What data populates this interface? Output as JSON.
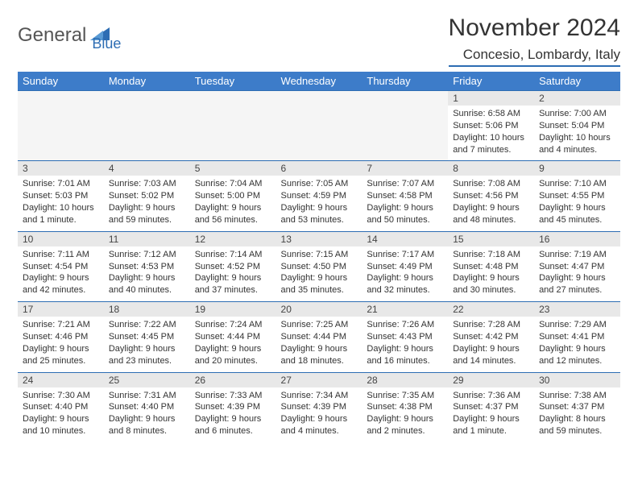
{
  "logo": {
    "part1": "General",
    "part2": "Blue"
  },
  "title": "November 2024",
  "location": "Concesio, Lombardy, Italy",
  "colors": {
    "accent": "#2d6db3",
    "header_bg": "#3d7cc9",
    "daynum_bg": "#e8e8e8",
    "border": "#2d6db3",
    "text": "#333333"
  },
  "weekdays": [
    "Sunday",
    "Monday",
    "Tuesday",
    "Wednesday",
    "Thursday",
    "Friday",
    "Saturday"
  ],
  "weeks": [
    [
      null,
      null,
      null,
      null,
      null,
      {
        "day": "1",
        "sunrise": "6:58 AM",
        "sunset": "5:06 PM",
        "daylight": "10 hours and 7 minutes."
      },
      {
        "day": "2",
        "sunrise": "7:00 AM",
        "sunset": "5:04 PM",
        "daylight": "10 hours and 4 minutes."
      }
    ],
    [
      {
        "day": "3",
        "sunrise": "7:01 AM",
        "sunset": "5:03 PM",
        "daylight": "10 hours and 1 minute."
      },
      {
        "day": "4",
        "sunrise": "7:03 AM",
        "sunset": "5:02 PM",
        "daylight": "9 hours and 59 minutes."
      },
      {
        "day": "5",
        "sunrise": "7:04 AM",
        "sunset": "5:00 PM",
        "daylight": "9 hours and 56 minutes."
      },
      {
        "day": "6",
        "sunrise": "7:05 AM",
        "sunset": "4:59 PM",
        "daylight": "9 hours and 53 minutes."
      },
      {
        "day": "7",
        "sunrise": "7:07 AM",
        "sunset": "4:58 PM",
        "daylight": "9 hours and 50 minutes."
      },
      {
        "day": "8",
        "sunrise": "7:08 AM",
        "sunset": "4:56 PM",
        "daylight": "9 hours and 48 minutes."
      },
      {
        "day": "9",
        "sunrise": "7:10 AM",
        "sunset": "4:55 PM",
        "daylight": "9 hours and 45 minutes."
      }
    ],
    [
      {
        "day": "10",
        "sunrise": "7:11 AM",
        "sunset": "4:54 PM",
        "daylight": "9 hours and 42 minutes."
      },
      {
        "day": "11",
        "sunrise": "7:12 AM",
        "sunset": "4:53 PM",
        "daylight": "9 hours and 40 minutes."
      },
      {
        "day": "12",
        "sunrise": "7:14 AM",
        "sunset": "4:52 PM",
        "daylight": "9 hours and 37 minutes."
      },
      {
        "day": "13",
        "sunrise": "7:15 AM",
        "sunset": "4:50 PM",
        "daylight": "9 hours and 35 minutes."
      },
      {
        "day": "14",
        "sunrise": "7:17 AM",
        "sunset": "4:49 PM",
        "daylight": "9 hours and 32 minutes."
      },
      {
        "day": "15",
        "sunrise": "7:18 AM",
        "sunset": "4:48 PM",
        "daylight": "9 hours and 30 minutes."
      },
      {
        "day": "16",
        "sunrise": "7:19 AM",
        "sunset": "4:47 PM",
        "daylight": "9 hours and 27 minutes."
      }
    ],
    [
      {
        "day": "17",
        "sunrise": "7:21 AM",
        "sunset": "4:46 PM",
        "daylight": "9 hours and 25 minutes."
      },
      {
        "day": "18",
        "sunrise": "7:22 AM",
        "sunset": "4:45 PM",
        "daylight": "9 hours and 23 minutes."
      },
      {
        "day": "19",
        "sunrise": "7:24 AM",
        "sunset": "4:44 PM",
        "daylight": "9 hours and 20 minutes."
      },
      {
        "day": "20",
        "sunrise": "7:25 AM",
        "sunset": "4:44 PM",
        "daylight": "9 hours and 18 minutes."
      },
      {
        "day": "21",
        "sunrise": "7:26 AM",
        "sunset": "4:43 PM",
        "daylight": "9 hours and 16 minutes."
      },
      {
        "day": "22",
        "sunrise": "7:28 AM",
        "sunset": "4:42 PM",
        "daylight": "9 hours and 14 minutes."
      },
      {
        "day": "23",
        "sunrise": "7:29 AM",
        "sunset": "4:41 PM",
        "daylight": "9 hours and 12 minutes."
      }
    ],
    [
      {
        "day": "24",
        "sunrise": "7:30 AM",
        "sunset": "4:40 PM",
        "daylight": "9 hours and 10 minutes."
      },
      {
        "day": "25",
        "sunrise": "7:31 AM",
        "sunset": "4:40 PM",
        "daylight": "9 hours and 8 minutes."
      },
      {
        "day": "26",
        "sunrise": "7:33 AM",
        "sunset": "4:39 PM",
        "daylight": "9 hours and 6 minutes."
      },
      {
        "day": "27",
        "sunrise": "7:34 AM",
        "sunset": "4:39 PM",
        "daylight": "9 hours and 4 minutes."
      },
      {
        "day": "28",
        "sunrise": "7:35 AM",
        "sunset": "4:38 PM",
        "daylight": "9 hours and 2 minutes."
      },
      {
        "day": "29",
        "sunrise": "7:36 AM",
        "sunset": "4:37 PM",
        "daylight": "9 hours and 1 minute."
      },
      {
        "day": "30",
        "sunrise": "7:38 AM",
        "sunset": "4:37 PM",
        "daylight": "8 hours and 59 minutes."
      }
    ]
  ],
  "labels": {
    "sunrise": "Sunrise:",
    "sunset": "Sunset:",
    "daylight": "Daylight:"
  }
}
